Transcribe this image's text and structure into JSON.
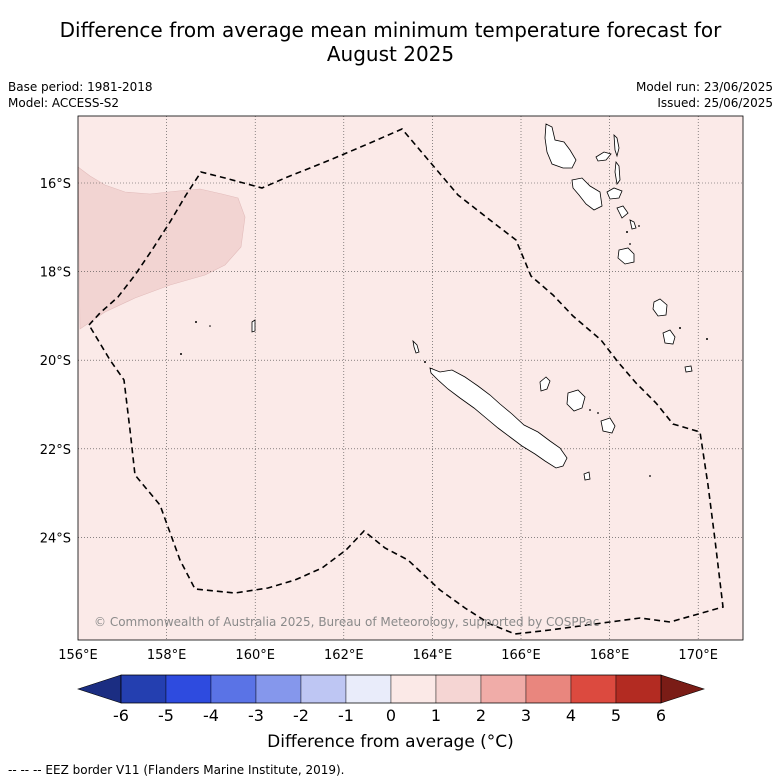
{
  "title_line1": "Difference from average mean minimum temperature forecast for",
  "title_line2": "August 2025",
  "base_period": "Base period: 1981-2018",
  "model": "Model: ACCESS-S2",
  "model_run": "Model run: 23/06/2025",
  "issued": "Issued: 25/06/2025",
  "copyright": "© Commonwealth of Australia 2025, Bureau of Meteorology, supported by COSPPac",
  "lon_ticks": [
    "156°E",
    "158°E",
    "160°E",
    "162°E",
    "164°E",
    "166°E",
    "168°E",
    "170°E"
  ],
  "lat_ticks": [
    "16°S",
    "18°S",
    "20°S",
    "22°S",
    "24°S"
  ],
  "colorbar": {
    "ticks": [
      "-6",
      "-5",
      "-4",
      "-3",
      "-2",
      "-1",
      "0",
      "1",
      "2",
      "3",
      "4",
      "5",
      "6"
    ],
    "colors": [
      "#243fb0",
      "#2e4bdf",
      "#5a73e6",
      "#8597ec",
      "#bec6f3",
      "#e9ecfa",
      "#fbe9e7",
      "#f5d5d3",
      "#f0aca8",
      "#e9867e",
      "#dc4a3f",
      "#b32b22"
    ],
    "under_color": "#1b2d82",
    "over_color": "#7a1c16",
    "label": "Difference from average (°C)"
  },
  "legend_footer": "--  --  -- EEZ border V11 (Flanders Marine Institute, 2019).",
  "map_colors": {
    "background": "#fbeae8",
    "warm_patch": "#f2d4d2"
  }
}
